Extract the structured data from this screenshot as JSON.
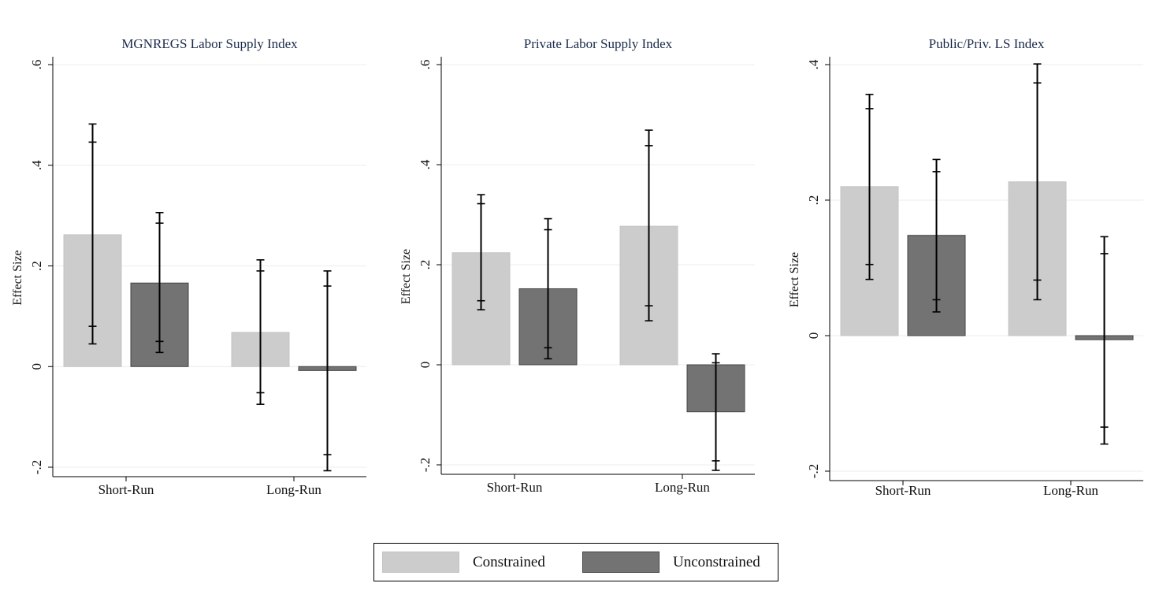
{
  "chart_data": [
    {
      "type": "bar",
      "title": "MGNREGS Labor Supply Index",
      "ylabel": "Effect Size",
      "xlabel": "",
      "categories": [
        "Short-Run",
        "Long-Run"
      ],
      "ylim": [
        -0.2,
        0.6
      ],
      "yticks": [
        -0.2,
        0,
        0.2,
        0.4,
        0.6
      ],
      "ytick_labels": [
        "-.2",
        "0",
        ".2",
        ".4",
        ".6"
      ],
      "grid": true,
      "series": [
        {
          "name": "Constrained",
          "values": [
            0.262,
            0.068
          ],
          "ci95": [
            [
              0.045,
              0.482
            ],
            [
              -0.075,
              0.212
            ]
          ],
          "ci90": [
            [
              0.08,
              0.446
            ],
            [
              -0.052,
              0.19
            ]
          ]
        },
        {
          "name": "Unconstrained",
          "values": [
            0.166,
            -0.008
          ],
          "ci95": [
            [
              0.028,
              0.306
            ],
            [
              -0.207,
              0.19
            ]
          ],
          "ci90": [
            [
              0.05,
              0.285
            ],
            [
              -0.175,
              0.16
            ]
          ]
        }
      ]
    },
    {
      "type": "bar",
      "title": "Private Labor Supply Index",
      "ylabel": "Effect Size",
      "xlabel": "",
      "categories": [
        "Short-Run",
        "Long-Run"
      ],
      "ylim": [
        -0.2,
        0.6
      ],
      "yticks": [
        -0.2,
        0,
        0.2,
        0.4,
        0.6
      ],
      "ytick_labels": [
        "-.2",
        "0",
        ".2",
        ".4",
        ".6"
      ],
      "grid": true,
      "series": [
        {
          "name": "Constrained",
          "values": [
            0.224,
            0.277
          ],
          "ci95": [
            [
              0.11,
              0.34
            ],
            [
              0.088,
              0.469
            ]
          ],
          "ci90": [
            [
              0.128,
              0.322
            ],
            [
              0.118,
              0.438
            ]
          ]
        },
        {
          "name": "Unconstrained",
          "values": [
            0.152,
            -0.094
          ],
          "ci95": [
            [
              0.012,
              0.292
            ],
            [
              -0.211,
              0.022
            ]
          ],
          "ci90": [
            [
              0.034,
              0.27
            ],
            [
              -0.192,
              0.004
            ]
          ]
        }
      ]
    },
    {
      "type": "bar",
      "title": "Public/Priv. LS Index",
      "ylabel": "Effect Size",
      "xlabel": "",
      "categories": [
        "Short-Run",
        "Long-Run"
      ],
      "ylim": [
        -0.2,
        0.4
      ],
      "yticks": [
        -0.2,
        0,
        0.2,
        0.4
      ],
      "ytick_labels": [
        "-.2",
        "0",
        ".2",
        ".4"
      ],
      "grid": true,
      "series": [
        {
          "name": "Constrained",
          "values": [
            0.22,
            0.227
          ],
          "ci95": [
            [
              0.083,
              0.356
            ],
            [
              0.053,
              0.401
            ]
          ],
          "ci90": [
            [
              0.105,
              0.335
            ],
            [
              0.082,
              0.373
            ]
          ]
        },
        {
          "name": "Unconstrained",
          "values": [
            0.148,
            -0.006
          ],
          "ci95": [
            [
              0.035,
              0.26
            ],
            [
              -0.16,
              0.146
            ]
          ],
          "ci90": [
            [
              0.053,
              0.242
            ],
            [
              -0.135,
              0.121
            ]
          ]
        }
      ]
    }
  ],
  "legend": {
    "placement": "bottom-center",
    "items": [
      {
        "label": "Constrained",
        "color": "#cccccc",
        "border": "#c4c4c4"
      },
      {
        "label": "Unconstrained",
        "color": "#737373",
        "border": "#444444"
      }
    ]
  },
  "colors": {
    "constrained": "#cccccc",
    "unconstrained": "#737373",
    "grid": "#ececec",
    "axis": "#000000",
    "title": "#1a2a4a",
    "error_bar": "#000000"
  }
}
